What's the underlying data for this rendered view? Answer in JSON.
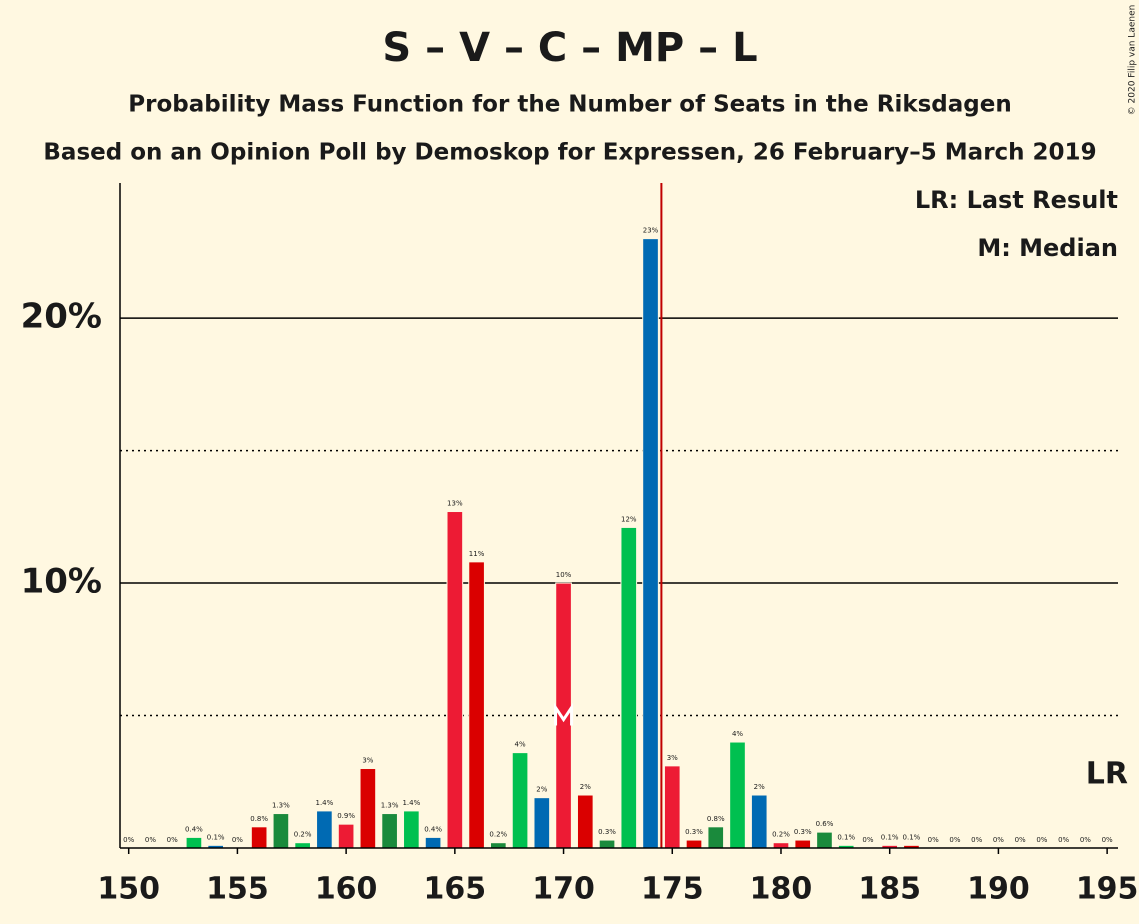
{
  "chart_data": {
    "type": "bar",
    "title": "S – V – C – MP – L",
    "subtitle": "Probability Mass Function for the Number of Seats in the Riksdagen",
    "subtitle2": "Based on an Opinion Poll by Demoskop for Expressen, 26 February–5 March 2019",
    "copyright": "© 2020 Filip van Laenen",
    "legend_lr": "LR: Last Result",
    "legend_median": "M: Median",
    "lr_label": "LR",
    "median_label": "M",
    "last_result": 175,
    "median": 170,
    "x": [
      150,
      151,
      152,
      153,
      154,
      155,
      156,
      157,
      158,
      159,
      160,
      161,
      162,
      163,
      164,
      165,
      166,
      167,
      168,
      169,
      170,
      171,
      172,
      173,
      174,
      175,
      176,
      177,
      178,
      179,
      180,
      181,
      182,
      183,
      184,
      185,
      186,
      187,
      188,
      189,
      190,
      191,
      192,
      193,
      194,
      195
    ],
    "values": [
      0,
      0,
      0,
      0.4,
      0.1,
      0,
      0.8,
      1.3,
      0.2,
      1.4,
      0.9,
      3.0,
      1.3,
      1.4,
      0.4,
      12.7,
      10.8,
      0.2,
      3.6,
      1.9,
      10.0,
      2.0,
      0.3,
      12.1,
      23.0,
      3.1,
      0.3,
      0.8,
      4.0,
      2.0,
      0.2,
      0.3,
      0.6,
      0.1,
      0,
      0.1,
      0.1,
      0,
      0,
      0,
      0,
      0,
      0,
      0,
      0,
      0
    ],
    "value_labels": [
      "0%",
      "0%",
      "0%",
      "0.4%",
      "0.1%",
      "0%",
      "0.8%",
      "1.3%",
      "0.2%",
      "1.4%",
      "0.9%",
      "3%",
      "1.3%",
      "1.4%",
      "0.4%",
      "13%",
      "11%",
      "0.2%",
      "4%",
      "2%",
      "10%",
      "2%",
      "0.3%",
      "12%",
      "23%",
      "3%",
      "0.3%",
      "0.8%",
      "4%",
      "2%",
      "0.2%",
      "0.3%",
      "0.6%",
      "0.1%",
      "0%",
      "0.1%",
      "0.1%",
      "0%",
      "0%",
      "0%",
      "0%",
      "0%",
      "0%",
      "0%",
      "0%",
      "0%"
    ],
    "colors": [
      "#ed1b34",
      "#da0000",
      "#1a8a3c",
      "#00c050",
      "#006ab3",
      "#ed1b34",
      "#da0000",
      "#1a8a3c",
      "#00c050",
      "#006ab3",
      "#ed1b34",
      "#da0000",
      "#1a8a3c",
      "#00c050",
      "#006ab3",
      "#ed1b34",
      "#da0000",
      "#1a8a3c",
      "#00c050",
      "#006ab3",
      "#ed1b34",
      "#da0000",
      "#1a8a3c",
      "#00c050",
      "#006ab3",
      "#ed1b34",
      "#da0000",
      "#1a8a3c",
      "#00c050",
      "#006ab3",
      "#ed1b34",
      "#da0000",
      "#1a8a3c",
      "#00c050",
      "#006ab3",
      "#ed1b34",
      "#da0000",
      "#1a8a3c",
      "#00c050",
      "#006ab3",
      "#ed1b34",
      "#da0000",
      "#1a8a3c",
      "#00c050",
      "#006ab3",
      "#ed1b34"
    ],
    "xlim": [
      149.6,
      195.5
    ],
    "xticks": [
      150,
      155,
      160,
      165,
      170,
      175,
      180,
      185,
      190,
      195
    ],
    "ylim": [
      0,
      25.1
    ],
    "yticks": [
      {
        "value": 10,
        "label": "10%"
      },
      {
        "value": 20,
        "label": "20%"
      }
    ],
    "minor_grid": [
      5,
      15
    ],
    "lr_color": "#c00000"
  }
}
